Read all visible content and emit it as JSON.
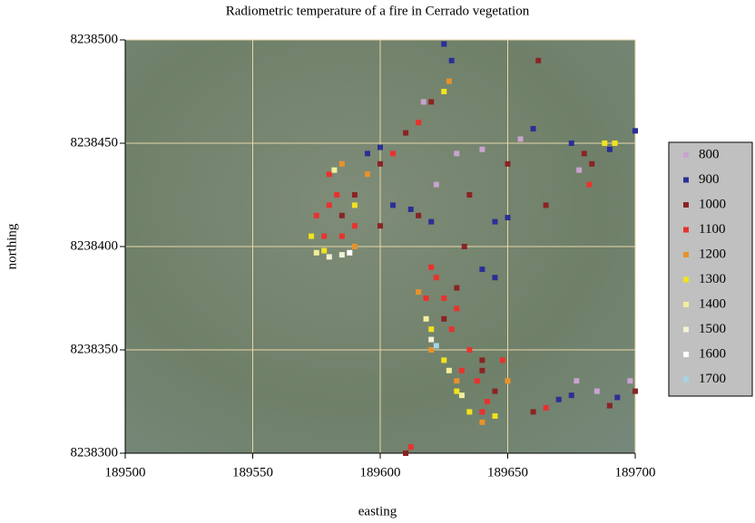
{
  "chart_data": {
    "type": "scatter",
    "title": "Radiometric temperature of a fire in Cerrado vegetation",
    "x_label": "easting",
    "y_label": "northing",
    "xlim": [
      189500,
      189700
    ],
    "ylim": [
      8238300,
      8238500
    ],
    "xticks": [
      189500,
      189550,
      189600,
      189650,
      189700
    ],
    "yticks": [
      8238300,
      8238350,
      8238400,
      8238450,
      8238500
    ],
    "grid": true,
    "legend": "right",
    "series": [
      {
        "name": "800",
        "color": "#c9a3cf",
        "x": [
          189617,
          189630,
          189640,
          189677,
          189685,
          189698,
          189678,
          189622,
          189655
        ],
        "y": [
          8238470,
          8238445,
          8238447,
          8238335,
          8238330,
          8238335,
          8238437,
          8238430,
          8238452
        ]
      },
      {
        "name": "900",
        "color": "#2b2f95",
        "x": [
          189625,
          189628,
          189600,
          189595,
          189605,
          189612,
          189620,
          189645,
          189650,
          189660,
          189675,
          189690,
          189700,
          189640,
          189645,
          189675,
          189693,
          189670
        ],
        "y": [
          8238498,
          8238490,
          8238448,
          8238445,
          8238420,
          8238418,
          8238412,
          8238412,
          8238414,
          8238457,
          8238450,
          8238447,
          8238456,
          8238389,
          8238385,
          8238328,
          8238327,
          8238326
        ]
      },
      {
        "name": "1000",
        "color": "#8a2424",
        "x": [
          189620,
          189610,
          189600,
          189590,
          189585,
          189600,
          189615,
          189635,
          189650,
          189665,
          189662,
          189680,
          189683,
          189630,
          189625,
          189640,
          189645,
          189660,
          189690,
          189700,
          189633,
          189610,
          189640
        ],
        "y": [
          8238470,
          8238455,
          8238440,
          8238425,
          8238415,
          8238410,
          8238415,
          8238425,
          8238440,
          8238420,
          8238490,
          8238445,
          8238440,
          8238380,
          8238365,
          8238345,
          8238330,
          8238320,
          8238323,
          8238330,
          8238400,
          8238300,
          8238340
        ]
      },
      {
        "name": "1100",
        "color": "#e8322e",
        "x": [
          189575,
          189580,
          189585,
          189578,
          189590,
          189583,
          189622,
          189625,
          189630,
          189628,
          189635,
          189638,
          189642,
          189632,
          189648,
          189640,
          189682,
          189612,
          189665,
          189620,
          189580,
          189605,
          189615,
          189618
        ],
        "y": [
          8238415,
          8238420,
          8238405,
          8238405,
          8238410,
          8238425,
          8238385,
          8238375,
          8238370,
          8238360,
          8238350,
          8238335,
          8238325,
          8238340,
          8238345,
          8238320,
          8238430,
          8238303,
          8238322,
          8238390,
          8238435,
          8238445,
          8238460,
          8238375
        ]
      },
      {
        "name": "1200",
        "color": "#e8922a",
        "x": [
          189590,
          189585,
          189615,
          189630,
          189640,
          189620,
          189650,
          189595,
          189627
        ],
        "y": [
          8238400,
          8238440,
          8238378,
          8238335,
          8238315,
          8238350,
          8238335,
          8238435,
          8238480
        ]
      },
      {
        "name": "1300",
        "color": "#f2e21e",
        "x": [
          189573,
          189578,
          189590,
          189620,
          189625,
          189630,
          189635,
          189645,
          189625,
          189688,
          189692
        ],
        "y": [
          8238405,
          8238398,
          8238420,
          8238360,
          8238345,
          8238330,
          8238320,
          8238318,
          8238475,
          8238450,
          8238450
        ]
      },
      {
        "name": "1400",
        "color": "#f1ef9c",
        "x": [
          189575,
          189618,
          189582,
          189627,
          189632
        ],
        "y": [
          8238397,
          8238365,
          8238437,
          8238340,
          8238328
        ]
      },
      {
        "name": "1500",
        "color": "#f3f1d4",
        "x": [
          189580,
          189585,
          189620
        ],
        "y": [
          8238395,
          8238396,
          8238355
        ]
      },
      {
        "name": "1600",
        "color": "#ffffff",
        "x": [
          189588
        ],
        "y": [
          8238397
        ]
      },
      {
        "name": "1700",
        "color": "#a6d3e3",
        "x": [
          189622
        ],
        "y": [
          8238352
        ]
      }
    ]
  }
}
